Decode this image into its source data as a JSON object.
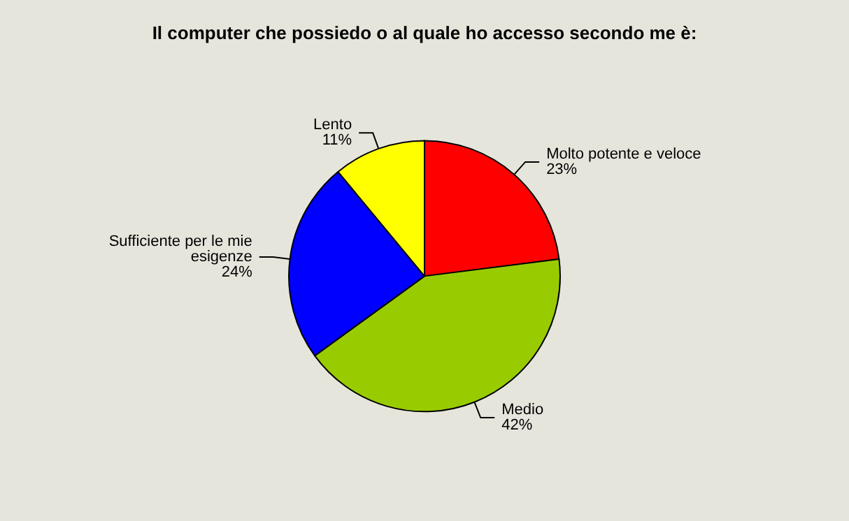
{
  "chart_data": {
    "type": "pie",
    "title": "Il computer che possiedo o al quale ho accesso secondo me è:",
    "categories": [
      "Molto potente e veloce",
      "Medio",
      "Sufficiente per le mie esigenze",
      "Lento"
    ],
    "values": [
      23,
      42,
      24,
      11
    ],
    "colors": [
      "#ff0000",
      "#99cc00",
      "#0000ff",
      "#ffff00"
    ],
    "value_labels": [
      "23%",
      "42%",
      "24%",
      "11%"
    ],
    "legend": false
  }
}
